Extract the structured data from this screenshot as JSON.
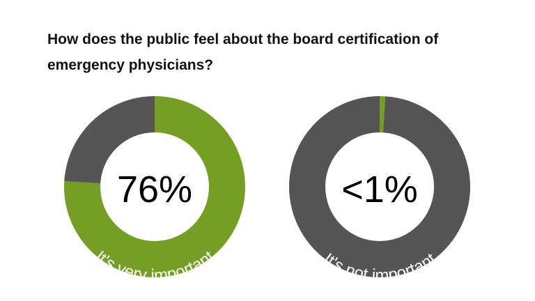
{
  "title": "How does the public feel about the board certification of emergency physicians?",
  "colors": {
    "accent": "#759e24",
    "neutral": "#555555"
  },
  "chart_data": [
    {
      "type": "pie",
      "variant": "donut",
      "label": "76%",
      "caption": "It's very important",
      "slices": [
        {
          "value": 76,
          "color": "#759e24"
        },
        {
          "value": 24,
          "color": "#555555"
        }
      ]
    },
    {
      "type": "pie",
      "variant": "donut",
      "label": "<1%",
      "caption": "It's not important",
      "slices": [
        {
          "value": 1,
          "color": "#759e24"
        },
        {
          "value": 99,
          "color": "#555555"
        }
      ]
    }
  ]
}
